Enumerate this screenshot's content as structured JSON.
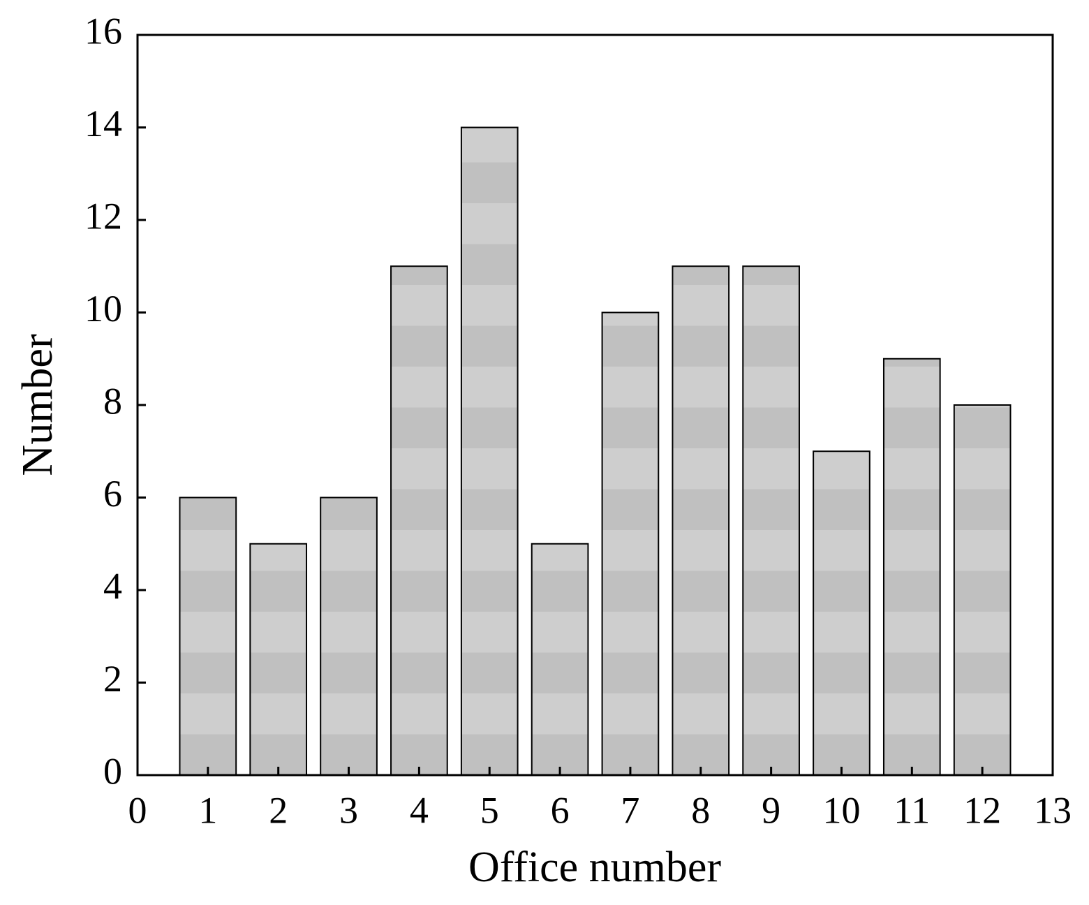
{
  "chart_data": {
    "type": "bar",
    "x_label": "Office number",
    "y_label": "Number",
    "x": [
      1,
      2,
      3,
      4,
      5,
      6,
      7,
      8,
      9,
      10,
      11,
      12
    ],
    "values": [
      6,
      5,
      6,
      11,
      14,
      5,
      10,
      11,
      11,
      7,
      9,
      8
    ],
    "color": "#c0c0c0",
    "xlim": [
      0,
      13
    ],
    "xticks": [
      0,
      1,
      2,
      3,
      4,
      5,
      6,
      7,
      8,
      9,
      10,
      11,
      12,
      13
    ],
    "ylim": [
      0,
      16
    ],
    "yticks": [
      0,
      2,
      4,
      6,
      8,
      10,
      12,
      14,
      16
    ],
    "grid": false
  }
}
